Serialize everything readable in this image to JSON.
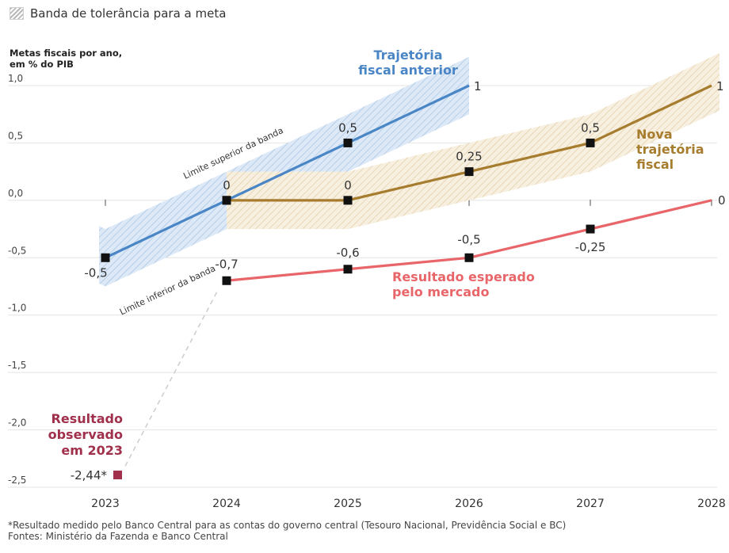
{
  "legend": {
    "label": "Banda de tolerância para a meta"
  },
  "chart_data": {
    "type": "line",
    "ytitle_line1": "Metas fiscais por ano,",
    "ytitle_line2": "em % do PIB",
    "ylim": [
      -2.5,
      1.0
    ],
    "xlim": [
      2023,
      2028
    ],
    "y_ticks": [
      {
        "value": 1.0,
        "label": "1,0"
      },
      {
        "value": 0.5,
        "label": "0,5"
      },
      {
        "value": 0.0,
        "label": "0,0"
      },
      {
        "value": -0.5,
        "label": "-0,5"
      },
      {
        "value": -1.0,
        "label": "-1,0"
      },
      {
        "value": -1.5,
        "label": "-1,5"
      },
      {
        "value": -2.0,
        "label": "-2,0"
      },
      {
        "value": -2.5,
        "label": "-2,5"
      }
    ],
    "x_ticks": [
      {
        "value": 2023,
        "label": "2023"
      },
      {
        "value": 2024,
        "label": "2024"
      },
      {
        "value": 2025,
        "label": "2025"
      },
      {
        "value": 2026,
        "label": "2026"
      },
      {
        "value": 2027,
        "label": "2027"
      },
      {
        "value": 2028,
        "label": "2028"
      }
    ],
    "grid": true,
    "series": [
      {
        "name": "Trajetória fiscal anterior",
        "label_lines": [
          "Trajetória",
          "fiscal anterior"
        ],
        "color": "#4a86c5",
        "band_color": "#4a86c5",
        "band_half_width": 0.25,
        "points": [
          {
            "x": 2023,
            "y": -0.5,
            "label": "-0,5"
          },
          {
            "x": 2024,
            "y": 0.0,
            "label": "0"
          },
          {
            "x": 2025,
            "y": 0.5,
            "label": "0,5"
          },
          {
            "x": 2026,
            "y": 1.0,
            "label": "1"
          }
        ]
      },
      {
        "name": "Nova trajetória fiscal",
        "label_lines": [
          "Nova",
          "trajetória",
          "fiscal"
        ],
        "color": "#a67c2e",
        "band_color": "#c9a66b",
        "band_half_width": 0.25,
        "points": [
          {
            "x": 2024,
            "y": 0.0,
            "label": "0"
          },
          {
            "x": 2025,
            "y": 0.0,
            "label": "0"
          },
          {
            "x": 2026,
            "y": 0.25,
            "label": "0,25"
          },
          {
            "x": 2027,
            "y": 0.5,
            "label": "0,5"
          },
          {
            "x": 2028,
            "y": 1.0,
            "label": "1"
          }
        ]
      },
      {
        "name": "Resultado esperado pelo mercado",
        "label_lines": [
          "Resultado esperado",
          "pelo mercado"
        ],
        "color": "#e8666a",
        "points": [
          {
            "x": 2024,
            "y": -0.7,
            "label": "-0,7"
          },
          {
            "x": 2025,
            "y": -0.6,
            "label": "-0,6"
          },
          {
            "x": 2026,
            "y": -0.5,
            "label": "-0,5"
          },
          {
            "x": 2027,
            "y": -0.25,
            "label": "-0,25"
          },
          {
            "x": 2028,
            "y": 0.0,
            "label": "0"
          }
        ]
      }
    ],
    "observed": {
      "name": "Resultado observado em 2023",
      "label_lines": [
        "Resultado",
        "observado",
        "em 2023"
      ],
      "x": 2023,
      "y": -2.44,
      "label": "-2,44*",
      "color": "#a0304b"
    },
    "band_labels": {
      "upper": "Limite superior da banda",
      "lower": "Limite inferior da banda"
    }
  },
  "footnotes": {
    "note": "*Resultado medido pelo Banco Central para as contas do governo central (Tesouro Nacional, Previdência Social e BC)",
    "sources": "Fontes: Ministério da Fazenda e Banco Central"
  }
}
